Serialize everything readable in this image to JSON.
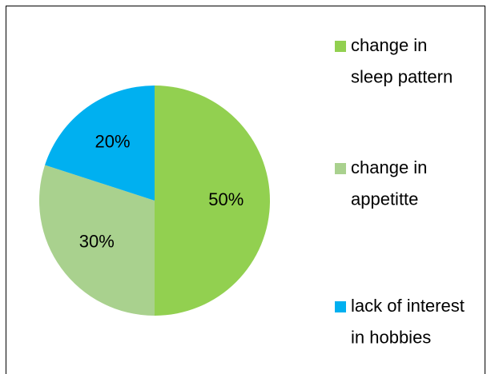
{
  "chart_data": {
    "type": "pie",
    "categories": [
      "change in sleep pattern",
      "change in appetitte",
      "lack of interest in hobbies"
    ],
    "values": [
      50,
      30,
      20
    ],
    "value_labels": [
      "50%",
      "30%",
      "20%"
    ],
    "colors": [
      "#92d050",
      "#a9d18e",
      "#00b0f0"
    ],
    "legend": "right"
  }
}
